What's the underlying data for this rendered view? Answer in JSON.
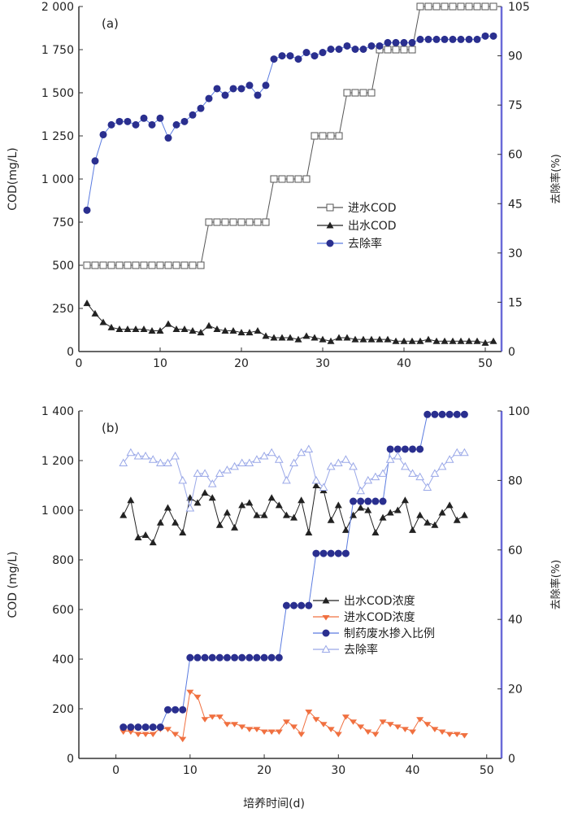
{
  "chart_data": [
    {
      "type": "line",
      "panel_label": "(a)",
      "xlim": [
        0,
        52
      ],
      "xticks": [
        0,
        10,
        20,
        30,
        40,
        50
      ],
      "ylabel": "COD(mg/L)",
      "ylim": [
        0,
        2000
      ],
      "yticks": [
        0,
        250,
        500,
        750,
        1000,
        1250,
        1500,
        1750,
        2000
      ],
      "ytick_labels": [
        "0",
        "250",
        "500",
        "750",
        "1 000",
        "1 250",
        "1 500",
        "1 750",
        "2 000"
      ],
      "y2label": "去除率(%)",
      "y2lim": [
        0,
        105
      ],
      "y2ticks": [
        0,
        15,
        30,
        45,
        60,
        75,
        90,
        105
      ],
      "legend_position": "center-right",
      "x_start": 1,
      "series": [
        {
          "name": "进水COD",
          "axis": "left",
          "marker": "open-square",
          "color": "#555555",
          "values": [
            500,
            500,
            500,
            500,
            500,
            500,
            500,
            500,
            500,
            500,
            500,
            500,
            500,
            500,
            500,
            750,
            750,
            750,
            750,
            750,
            750,
            750,
            750,
            1000,
            1000,
            1000,
            1000,
            1000,
            1250,
            1250,
            1250,
            1250,
            1500,
            1500,
            1500,
            1500,
            1750,
            1750,
            1750,
            1750,
            1750,
            2000,
            2000,
            2000,
            2000,
            2000,
            2000,
            2000,
            2000,
            2000,
            2000
          ]
        },
        {
          "name": "出水COD",
          "axis": "left",
          "marker": "triangle",
          "color": "#222222",
          "values": [
            280,
            220,
            170,
            140,
            130,
            130,
            130,
            130,
            120,
            120,
            160,
            130,
            130,
            120,
            110,
            150,
            130,
            120,
            120,
            110,
            110,
            120,
            90,
            80,
            80,
            80,
            70,
            90,
            80,
            70,
            60,
            80,
            80,
            70,
            70,
            70,
            70,
            70,
            60,
            60,
            60,
            60,
            70,
            60,
            60,
            60,
            60,
            60,
            60,
            50,
            60
          ]
        },
        {
          "name": "去除率",
          "axis": "right",
          "marker": "circle",
          "color": "#2a2f8f",
          "line": "#5a7be0",
          "values": [
            43,
            58,
            66,
            69,
            70,
            70,
            69,
            71,
            69,
            71,
            65,
            69,
            70,
            72,
            74,
            77,
            80,
            78,
            80,
            80,
            81,
            78,
            81,
            89,
            90,
            90,
            89,
            91,
            90,
            91,
            92,
            92,
            93,
            92,
            92,
            93,
            93,
            94,
            94,
            94,
            94,
            95,
            95,
            95,
            95,
            95,
            95,
            95,
            95,
            96,
            96
          ]
        }
      ]
    },
    {
      "type": "line",
      "panel_label": "(b)",
      "xlim": [
        -5,
        52
      ],
      "xticks": [
        0,
        10,
        20,
        30,
        40,
        50
      ],
      "xlabel": "培养时间(d)",
      "ylabel": "COD (mg/L)",
      "ylim": [
        0,
        1400
      ],
      "yticks": [
        0,
        200,
        400,
        600,
        800,
        1000,
        1200,
        1400
      ],
      "ytick_labels": [
        "0",
        "200",
        "400",
        "600",
        "800",
        "1 000",
        "1 200",
        "1 400"
      ],
      "y2label": "去除率(%)",
      "y2lim": [
        0,
        100
      ],
      "y2ticks": [
        0,
        20,
        40,
        60,
        80,
        100
      ],
      "legend_position": "center-right",
      "x_start": 1,
      "series": [
        {
          "name": "出水COD浓度",
          "axis": "left",
          "marker": "triangle",
          "color": "#222222",
          "values": [
            980,
            1040,
            890,
            900,
            870,
            950,
            1010,
            950,
            910,
            1050,
            1030,
            1070,
            1050,
            940,
            990,
            930,
            1020,
            1030,
            980,
            980,
            1050,
            1020,
            980,
            970,
            1040,
            910,
            1100,
            1080,
            960,
            1020,
            920,
            980,
            1010,
            1000,
            910,
            970,
            990,
            1000,
            1040,
            920,
            980,
            950,
            940,
            990,
            1020,
            960,
            980
          ]
        },
        {
          "name": "进水COD浓度",
          "axis": "left",
          "marker": "star",
          "color": "#f07040",
          "values": [
            110,
            110,
            100,
            100,
            100,
            120,
            120,
            100,
            80,
            270,
            250,
            160,
            170,
            170,
            140,
            140,
            130,
            120,
            120,
            110,
            110,
            110,
            150,
            130,
            100,
            190,
            160,
            140,
            120,
            100,
            170,
            150,
            130,
            110,
            100,
            150,
            140,
            130,
            120,
            110,
            160,
            140,
            120,
            110,
            100,
            100,
            95
          ]
        },
        {
          "name": "制药废水掺入比例",
          "axis": "right",
          "marker": "circle",
          "color": "#2a2f8f",
          "line": "#5a7be0",
          "values": [
            9,
            9,
            9,
            9,
            9,
            9,
            14,
            14,
            14,
            29,
            29,
            29,
            29,
            29,
            29,
            29,
            29,
            29,
            29,
            29,
            29,
            29,
            44,
            44,
            44,
            44,
            59,
            59,
            59,
            59,
            59,
            74,
            74,
            74,
            74,
            74,
            89,
            89,
            89,
            89,
            89,
            99,
            99,
            99,
            99,
            99,
            99
          ]
        },
        {
          "name": "去除率",
          "axis": "right",
          "marker": "open-triangle",
          "color": "#9aa8e8",
          "values": [
            85,
            88,
            87,
            87,
            86,
            85,
            85,
            87,
            80,
            72,
            82,
            82,
            79,
            82,
            83,
            84,
            85,
            85,
            86,
            87,
            88,
            86,
            80,
            85,
            88,
            89,
            80,
            78,
            84,
            85,
            86,
            84,
            77,
            80,
            81,
            82,
            86,
            87,
            84,
            82,
            81,
            78,
            82,
            84,
            86,
            88,
            88
          ]
        }
      ]
    }
  ]
}
